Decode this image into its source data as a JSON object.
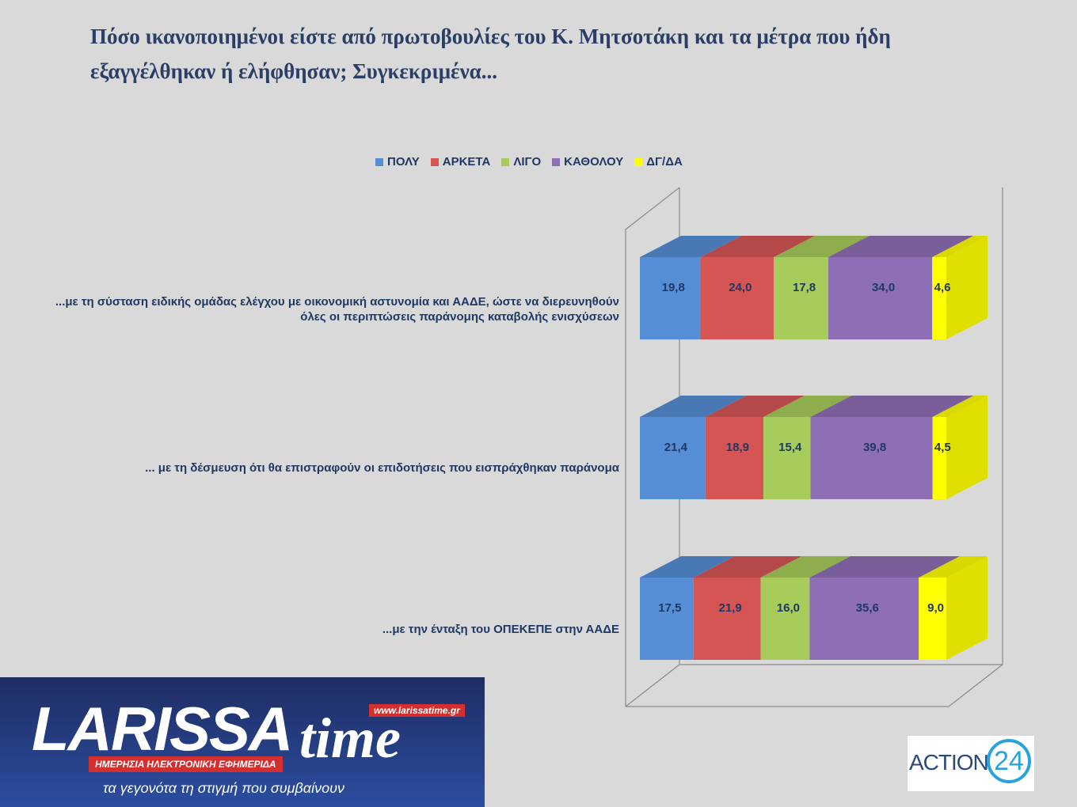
{
  "title": "Πόσο ικανοποιημένοι είστε από πρωτοβουλίες του Κ. Μητσοτάκη και τα μέτρα που ήδη εξαγγέλθηκαν ή ελήφθησαν; Συγκεκριμένα...",
  "chart_data": {
    "type": "bar",
    "orientation": "horizontal",
    "stacked": "100%",
    "style": "3d",
    "legend_position": "top",
    "categories": [
      "...με τη σύσταση ειδικής ομάδας ελέγχου με οικονομική αστυνομία και ΑΑΔΕ, ώστε να διερευνηθούν όλες οι περιπτώσεις παράνομης καταβολής ενισχύσεων",
      "... με τη δέσμευση ότι θα επιστραφούν οι επιδοτήσεις που εισπράχθηκαν παράνομα",
      "...με την ένταξη του ΟΠΕΚΕΠΕ στην ΑΑΔΕ"
    ],
    "series": [
      {
        "name": "ΠΟΛΥ",
        "color": "#558ed5",
        "values": [
          19.8,
          21.4,
          17.5
        ],
        "labels": [
          "19,8",
          "21,4",
          "17,5"
        ]
      },
      {
        "name": "ΑΡΚΕΤΑ",
        "color": "#d55555",
        "values": [
          24.0,
          18.9,
          21.9
        ],
        "labels": [
          "24,0",
          "18,9",
          "21,9"
        ]
      },
      {
        "name": "ΛΙΓΟ",
        "color": "#a7cc5b",
        "values": [
          17.8,
          15.4,
          16.0
        ],
        "labels": [
          "17,8",
          "15,4",
          "16,0"
        ]
      },
      {
        "name": "ΚΑΘΟΛΟΥ",
        "color": "#8e6fb5",
        "values": [
          34.0,
          39.8,
          35.6
        ],
        "labels": [
          "34,0",
          "39,8",
          "35,6"
        ]
      },
      {
        "name": "ΔΓ/ΔΑ",
        "color": "#ffff00",
        "values": [
          4.6,
          4.5,
          9.0
        ],
        "labels": [
          "4,6",
          "4,5",
          "9,0"
        ]
      }
    ]
  },
  "branding": {
    "logo_main": "LARISSA",
    "logo_time": "time",
    "logo_url": "www.larissatime.gr",
    "logo_strap": "ΗΜΕΡΗΣΙΑ ΗΛΕΚΤΡΟΝΙΚΗ ΕΦΗΜΕΡΙΔΑ",
    "logo_tagline": "τα γεγονότα τη στιγμή που συμβαίνουν",
    "action_text": "ACTION",
    "action_num": "24"
  }
}
